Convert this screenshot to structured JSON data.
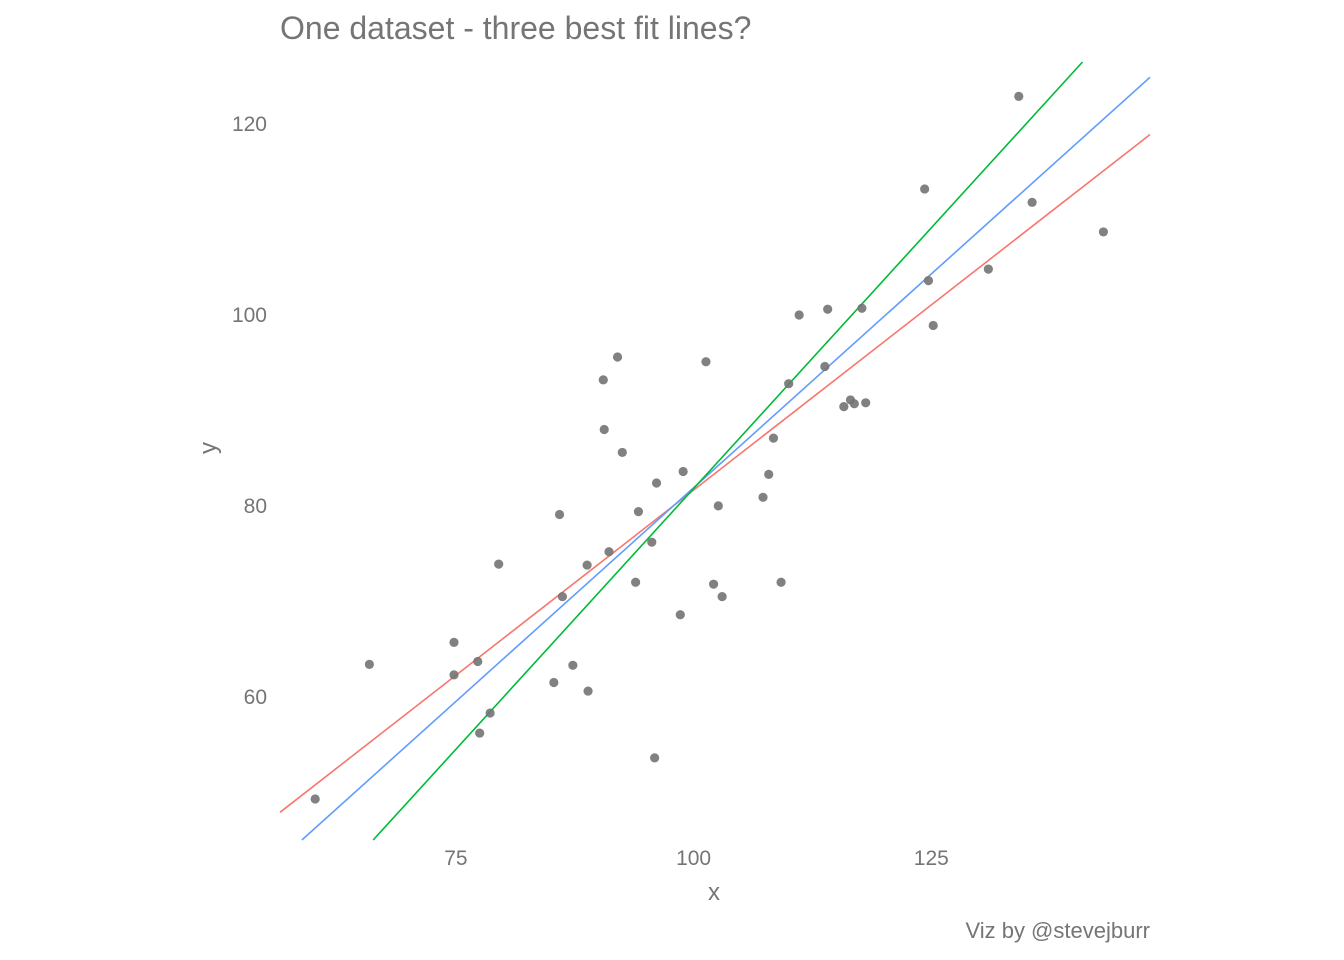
{
  "chart_data": {
    "type": "scatter",
    "title": "One dataset - three best fit lines?",
    "caption": "Viz by @stevejburr",
    "xlabel": "x",
    "ylabel": "y",
    "xlim": [
      56.5,
      148
    ],
    "ylim": [
      45,
      126.5
    ],
    "x_ticks": [
      75,
      100,
      125
    ],
    "y_ticks": [
      60,
      80,
      100,
      120
    ],
    "grid": false,
    "point_color": "#737373",
    "points": [
      {
        "x": 60.2,
        "y": 49.3
      },
      {
        "x": 65.9,
        "y": 63.4
      },
      {
        "x": 74.8,
        "y": 65.7
      },
      {
        "x": 74.8,
        "y": 62.3
      },
      {
        "x": 77.3,
        "y": 63.7
      },
      {
        "x": 77.5,
        "y": 56.2
      },
      {
        "x": 78.6,
        "y": 58.3
      },
      {
        "x": 79.5,
        "y": 73.9
      },
      {
        "x": 85.3,
        "y": 61.5
      },
      {
        "x": 85.9,
        "y": 79.1
      },
      {
        "x": 86.2,
        "y": 70.5
      },
      {
        "x": 87.3,
        "y": 63.3
      },
      {
        "x": 88.8,
        "y": 73.8
      },
      {
        "x": 88.9,
        "y": 60.6
      },
      {
        "x": 90.5,
        "y": 93.2
      },
      {
        "x": 90.6,
        "y": 88.0
      },
      {
        "x": 91.1,
        "y": 75.2
      },
      {
        "x": 92.0,
        "y": 95.6
      },
      {
        "x": 92.5,
        "y": 85.6
      },
      {
        "x": 93.9,
        "y": 72.0
      },
      {
        "x": 94.2,
        "y": 79.4
      },
      {
        "x": 95.6,
        "y": 76.2
      },
      {
        "x": 95.9,
        "y": 53.6
      },
      {
        "x": 96.1,
        "y": 82.4
      },
      {
        "x": 98.6,
        "y": 68.6
      },
      {
        "x": 98.9,
        "y": 83.6
      },
      {
        "x": 101.3,
        "y": 95.1
      },
      {
        "x": 102.1,
        "y": 71.8
      },
      {
        "x": 102.6,
        "y": 80.0
      },
      {
        "x": 103.0,
        "y": 70.5
      },
      {
        "x": 107.3,
        "y": 80.9
      },
      {
        "x": 107.9,
        "y": 83.3
      },
      {
        "x": 108.4,
        "y": 87.1
      },
      {
        "x": 109.2,
        "y": 72.0
      },
      {
        "x": 110.0,
        "y": 92.8
      },
      {
        "x": 111.1,
        "y": 100.0
      },
      {
        "x": 113.8,
        "y": 94.6
      },
      {
        "x": 114.1,
        "y": 100.6
      },
      {
        "x": 115.8,
        "y": 90.4
      },
      {
        "x": 116.5,
        "y": 91.1
      },
      {
        "x": 116.9,
        "y": 90.7
      },
      {
        "x": 117.7,
        "y": 100.7
      },
      {
        "x": 118.1,
        "y": 90.8
      },
      {
        "x": 124.3,
        "y": 113.2
      },
      {
        "x": 124.7,
        "y": 103.6
      },
      {
        "x": 125.2,
        "y": 98.9
      },
      {
        "x": 131.0,
        "y": 104.8
      },
      {
        "x": 134.2,
        "y": 122.9
      },
      {
        "x": 135.6,
        "y": 111.8
      },
      {
        "x": 143.1,
        "y": 108.7
      }
    ],
    "lines": [
      {
        "color": "#F8766D",
        "x": [
          56.5,
          148.0
        ],
        "y": [
          47.9,
          118.9
        ]
      },
      {
        "color": "#619CFF",
        "x": [
          58.8,
          148.0
        ],
        "y": [
          45.0,
          124.9
        ]
      },
      {
        "color": "#00BA38",
        "x": [
          66.3,
          140.9
        ],
        "y": [
          45.0,
          126.5
        ]
      }
    ]
  }
}
